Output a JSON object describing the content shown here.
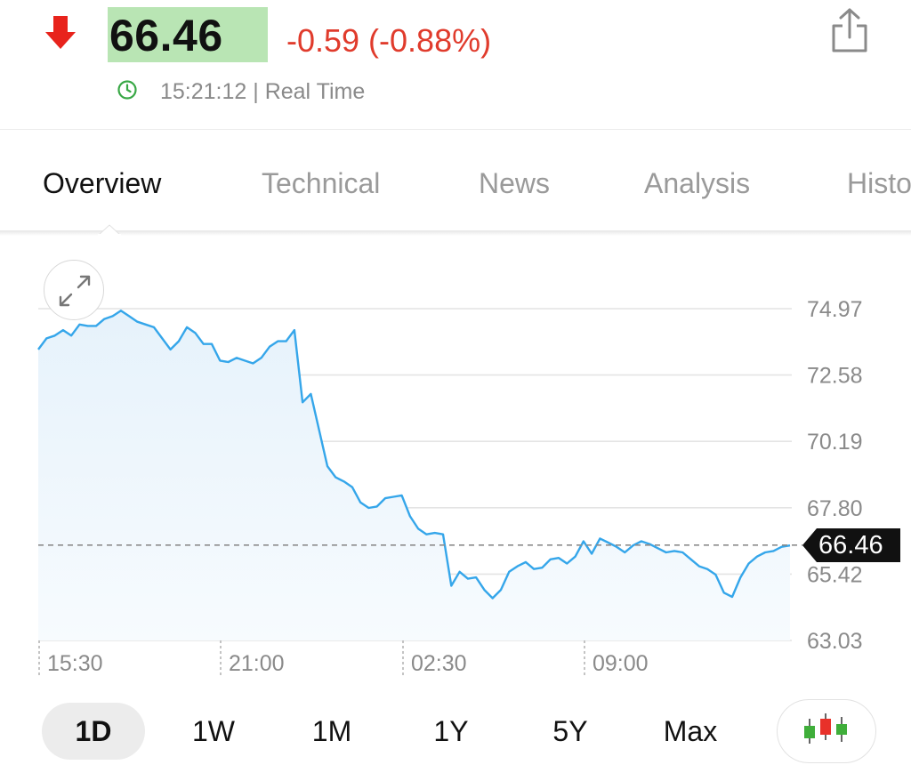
{
  "quote": {
    "price": "66.46",
    "change": "-0.59 (-0.88%)",
    "time": "15:21:12 | Real Time",
    "direction_icon": "down-arrow-icon",
    "colors": {
      "down": "#e03b2c",
      "price_highlight": "#b9e5b4",
      "line": "#35a6ea"
    }
  },
  "tabs": [
    {
      "label": "Overview",
      "active": true
    },
    {
      "label": "Technical"
    },
    {
      "label": "News"
    },
    {
      "label": "Analysis"
    },
    {
      "label": "Histo"
    }
  ],
  "chart_data": {
    "type": "line",
    "y_ticks": [
      "74.97",
      "72.58",
      "70.19",
      "67.80",
      "65.42",
      "63.03"
    ],
    "ylim": [
      63.03,
      74.97
    ],
    "x_ticks": [
      "15:30",
      "21:00",
      "02:30",
      "09:00"
    ],
    "current_value": "66.46",
    "grid": true,
    "series": [
      {
        "values": [
          73.5,
          73.9,
          74.0,
          74.2,
          74.0,
          74.4,
          74.35,
          74.35,
          74.6,
          74.7,
          74.9,
          74.7,
          74.5,
          74.4,
          74.3,
          73.9,
          73.5,
          73.8,
          74.3,
          74.1,
          73.7,
          73.7,
          73.1,
          73.05,
          73.2,
          73.1,
          73.0,
          73.2,
          73.6,
          73.8,
          73.8,
          74.2,
          71.6,
          71.9,
          70.6,
          69.3,
          68.9,
          68.75,
          68.55,
          68.0,
          67.8,
          67.85,
          68.15,
          68.2,
          68.25,
          67.5,
          67.05,
          66.85,
          66.9,
          66.85,
          65.0,
          65.5,
          65.25,
          65.3,
          64.85,
          64.55,
          64.85,
          65.5,
          65.7,
          65.85,
          65.6,
          65.65,
          65.95,
          66.0,
          65.8,
          66.05,
          66.6,
          66.15,
          66.7,
          66.55,
          66.4,
          66.2,
          66.45,
          66.6,
          66.5,
          66.35,
          66.2,
          66.25,
          66.2,
          65.95,
          65.7,
          65.6,
          65.4,
          64.75,
          64.6,
          65.3,
          65.8,
          66.05,
          66.2,
          66.25,
          66.4,
          66.45
        ]
      }
    ]
  },
  "ranges": [
    {
      "label": "1D",
      "active": true
    },
    {
      "label": "1W"
    },
    {
      "label": "1M"
    },
    {
      "label": "1Y"
    },
    {
      "label": "5Y"
    },
    {
      "label": "Max"
    }
  ]
}
